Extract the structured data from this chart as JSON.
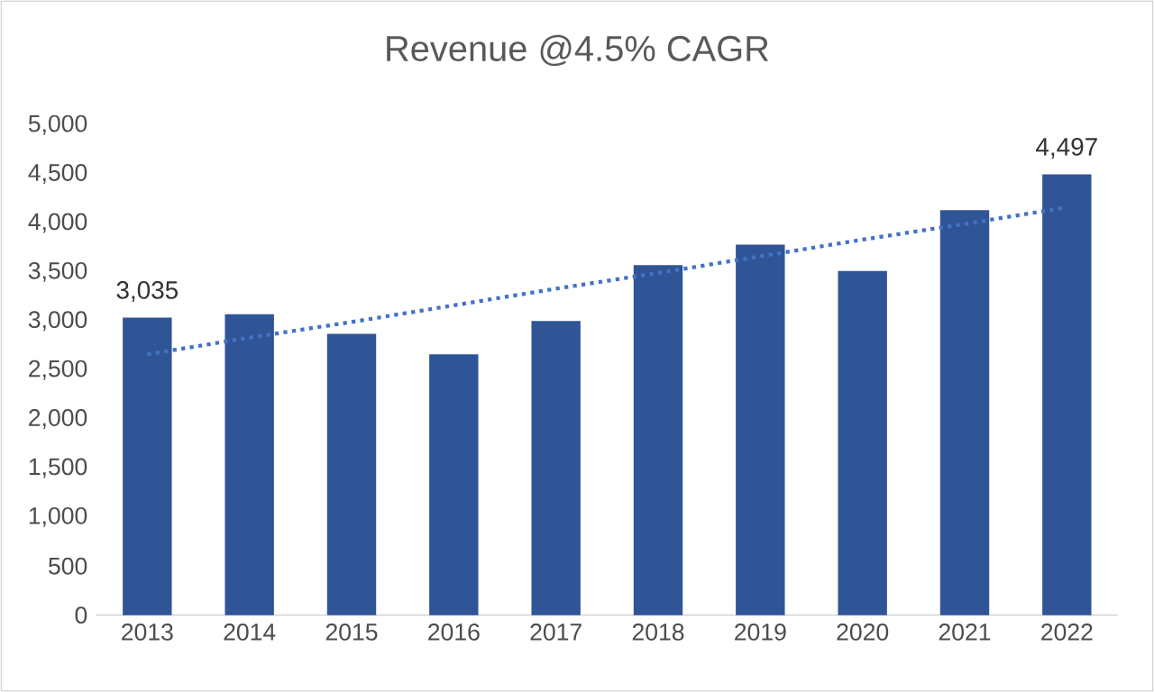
{
  "chart_data": {
    "type": "bar",
    "title": "Revenue @4.5% CAGR",
    "categories": [
      "2013",
      "2014",
      "2015",
      "2016",
      "2017",
      "2018",
      "2019",
      "2020",
      "2021",
      "2022"
    ],
    "series": [
      {
        "color": "#2f5597",
        "values": [
          3035,
          3070,
          2870,
          2660,
          3000,
          3570,
          3780,
          3510,
          4130,
          4497
        ],
        "value_labels": [
          "3,035",
          null,
          null,
          null,
          null,
          null,
          null,
          null,
          null,
          "4,497"
        ]
      },
      {
        "type": "line",
        "color": "#4472c4",
        "values": [
          2660,
          2830,
          2990,
          3160,
          3330,
          3490,
          3660,
          3830,
          3990,
          4160
        ],
        "line_style": "dotted"
      }
    ],
    "ylim": [
      0,
      5000
    ],
    "yticks": [
      {
        "value": 0,
        "label": "0"
      },
      {
        "value": 500,
        "label": "500"
      },
      {
        "value": 1000,
        "label": "1,000"
      },
      {
        "value": 1500,
        "label": "1,500"
      },
      {
        "value": 2000,
        "label": "2,000"
      },
      {
        "value": 2500,
        "label": "2,500"
      },
      {
        "value": 3000,
        "label": "3,000"
      },
      {
        "value": 3500,
        "label": "3,500"
      },
      {
        "value": 4000,
        "label": "4,000"
      },
      {
        "value": 4500,
        "label": "4,500"
      },
      {
        "value": 5000,
        "label": "5,000"
      }
    ],
    "grid": false
  }
}
